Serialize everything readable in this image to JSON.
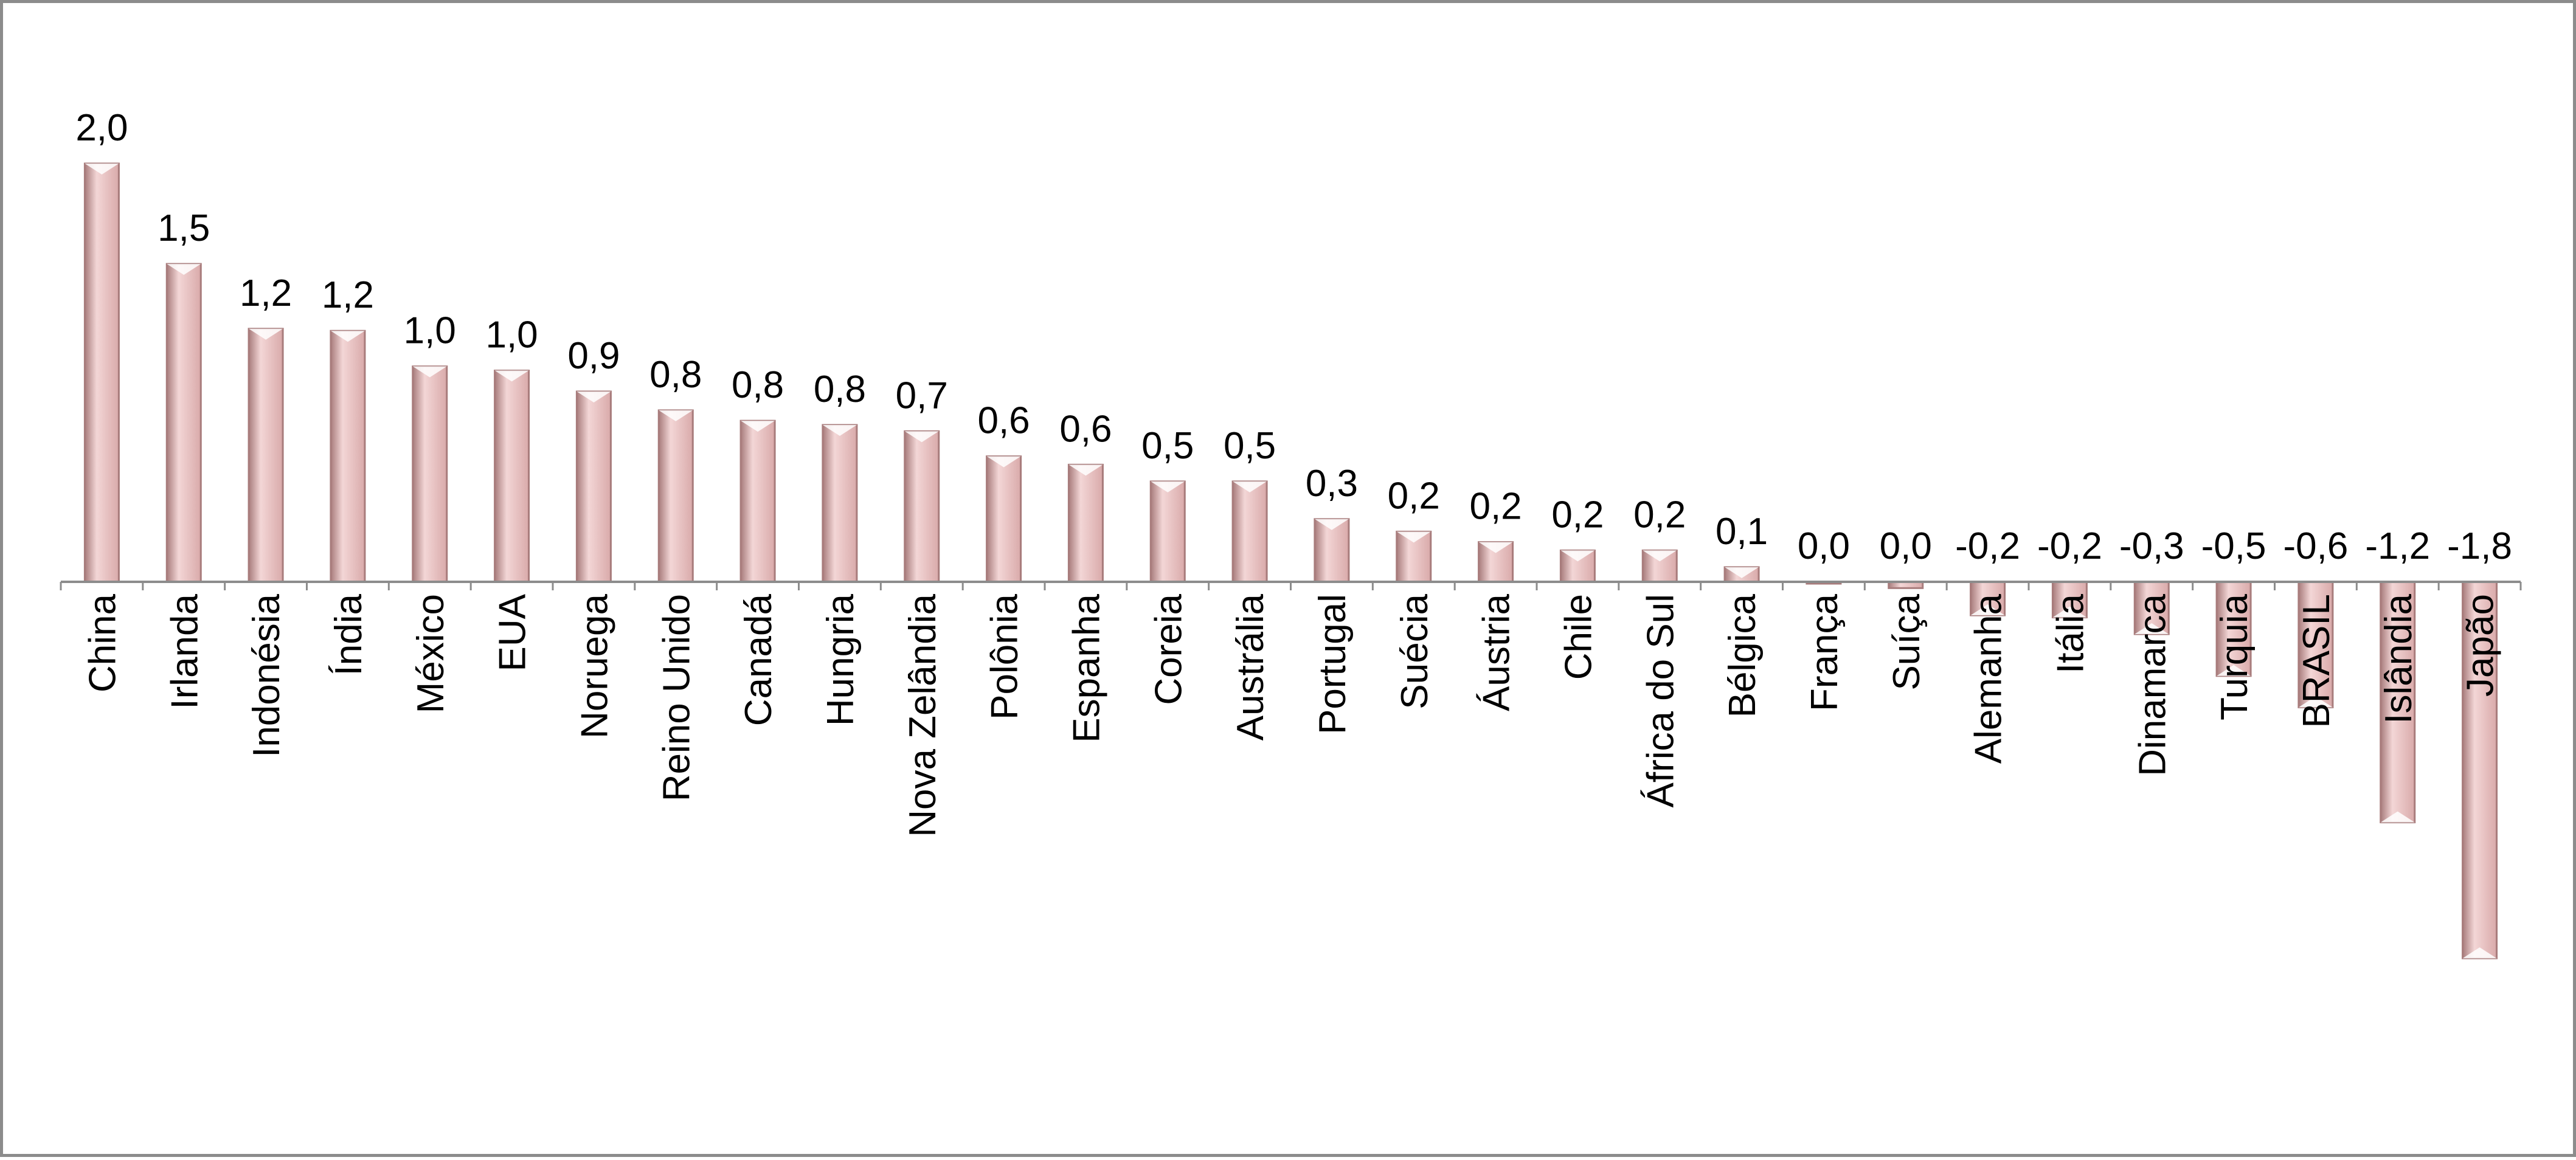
{
  "chart_data": {
    "type": "bar",
    "categories": [
      "China",
      "Irlanda",
      "Indonésia",
      "Índia",
      "México",
      "EUA",
      "Noruega",
      "Reino Unido",
      "Canadá",
      "Hungria",
      "Nova Zelândia",
      "Polônia",
      "Espanha",
      "Coreia",
      "Austrália",
      "Portugal",
      "Suécia",
      "Áustria",
      "Chile",
      "África do Sul",
      "Bélgica",
      "França",
      "Suíça",
      "Alemanha",
      "Itália",
      "Dinamarca",
      "Turquia",
      "BRASIL",
      "Islândia",
      "Japão"
    ],
    "values": [
      2.0,
      1.52,
      1.21,
      1.2,
      1.03,
      1.01,
      0.91,
      0.82,
      0.77,
      0.75,
      0.72,
      0.6,
      0.56,
      0.48,
      0.48,
      0.3,
      0.24,
      0.19,
      0.15,
      0.15,
      0.07,
      0.0,
      -0.03,
      -0.16,
      -0.17,
      -0.25,
      -0.45,
      -0.6,
      -1.15,
      -1.8
    ],
    "value_labels": [
      "2,0",
      "1,5",
      "1,2",
      "1,2",
      "1,0",
      "1,0",
      "0,9",
      "0,8",
      "0,8",
      "0,8",
      "0,7",
      "0,6",
      "0,6",
      "0,5",
      "0,5",
      "0,3",
      "0,2",
      "0,2",
      "0,2",
      "0,2",
      "0,1",
      "0,0",
      "0,0",
      "-0,2",
      "-0,2",
      "-0,3",
      "-0,5",
      "-0,6",
      "-1,2",
      "-1,8"
    ],
    "title": "",
    "xlabel": "",
    "ylabel": "",
    "ylim": [
      -1.8,
      2.0
    ],
    "grid": false,
    "legend": "none",
    "colors": {
      "bar_fill": "#d9aaaa",
      "bar_light": "#f3d6d6",
      "bar_dark": "#a87c7c",
      "axis": "#8c8c8c",
      "frame": "#8c8c8c"
    }
  }
}
